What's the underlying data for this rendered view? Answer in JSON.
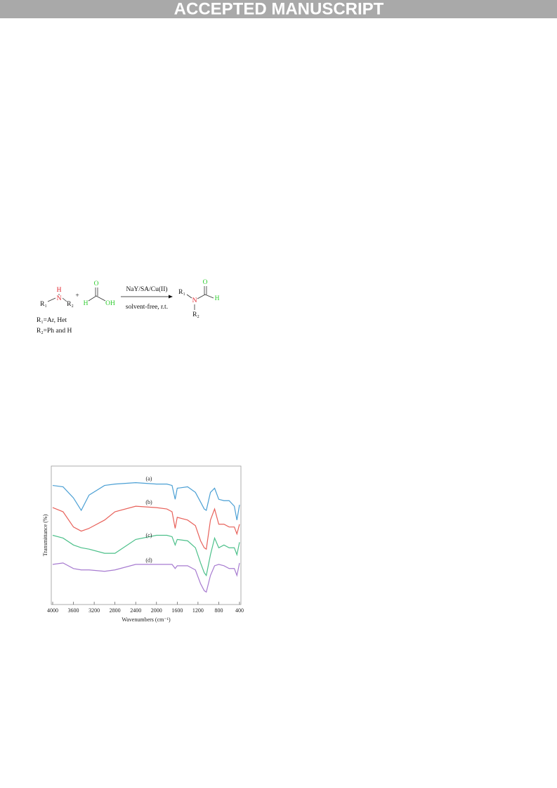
{
  "header": {
    "title": "ACCEPTED MANUSCRIPT"
  },
  "scheme": {
    "reactant_amine": {
      "h": "H",
      "n": "N",
      "r1": "R₁",
      "r2": "R₂"
    },
    "plus": "+",
    "formic_acid": {
      "o": "O",
      "h": "H",
      "oh": "OH"
    },
    "catalyst": "NaY/SA/Cu(II)",
    "conditions": "solvent-free, r.t.",
    "product": {
      "r1": "R₁",
      "n": "N",
      "o": "O",
      "h": "H",
      "r2": "R₂"
    },
    "notes": [
      "R₁=Ar, Het",
      "R₂=Ph and H"
    ]
  },
  "chart_data": {
    "type": "line",
    "xlabel": "Wavenumbers (cm⁻¹)",
    "ylabel": "Transmittance (%)",
    "x": [
      4000,
      3800,
      3600,
      3450,
      3300,
      3000,
      2800,
      2400,
      2000,
      1800,
      1700,
      1640,
      1600,
      1400,
      1250,
      1150,
      1080,
      1040,
      960,
      880,
      800,
      700,
      600,
      500,
      450,
      400
    ],
    "xlim": [
      4000,
      400
    ],
    "xticks": [
      4000,
      3600,
      3200,
      2800,
      2400,
      2000,
      1600,
      1200,
      800,
      400
    ],
    "ylim": [
      0,
      100
    ],
    "series": [
      {
        "name": "(a)",
        "color": "#4a9fd4",
        "values": [
          86,
          85,
          77,
          68,
          79,
          86,
          87,
          88,
          87,
          87,
          86,
          76,
          84,
          85,
          81,
          74,
          69,
          68,
          81,
          84,
          76,
          75,
          75,
          71,
          61,
          72
        ]
      },
      {
        "name": "(b)",
        "color": "#e8615a",
        "values": [
          70,
          67,
          56,
          53,
          55,
          61,
          67,
          71,
          70,
          69,
          67,
          55,
          63,
          61,
          57,
          46,
          41,
          40,
          61,
          69,
          58,
          58,
          56,
          56,
          51,
          58
        ]
      },
      {
        "name": "(c)",
        "color": "#4cc08a",
        "values": [
          50,
          48,
          43,
          41,
          40,
          37,
          37,
          47,
          50,
          50,
          49,
          43,
          47,
          46,
          41,
          30,
          23,
          21,
          36,
          48,
          41,
          43,
          41,
          41,
          36,
          45
        ]
      },
      {
        "name": "(d)",
        "color": "#a77bd0",
        "values": [
          29,
          30,
          26,
          25,
          25,
          24,
          25,
          29,
          29,
          29,
          29,
          26,
          28,
          28,
          25,
          15,
          10,
          9,
          21,
          28,
          29,
          28,
          26,
          26,
          21,
          30
        ]
      }
    ]
  }
}
